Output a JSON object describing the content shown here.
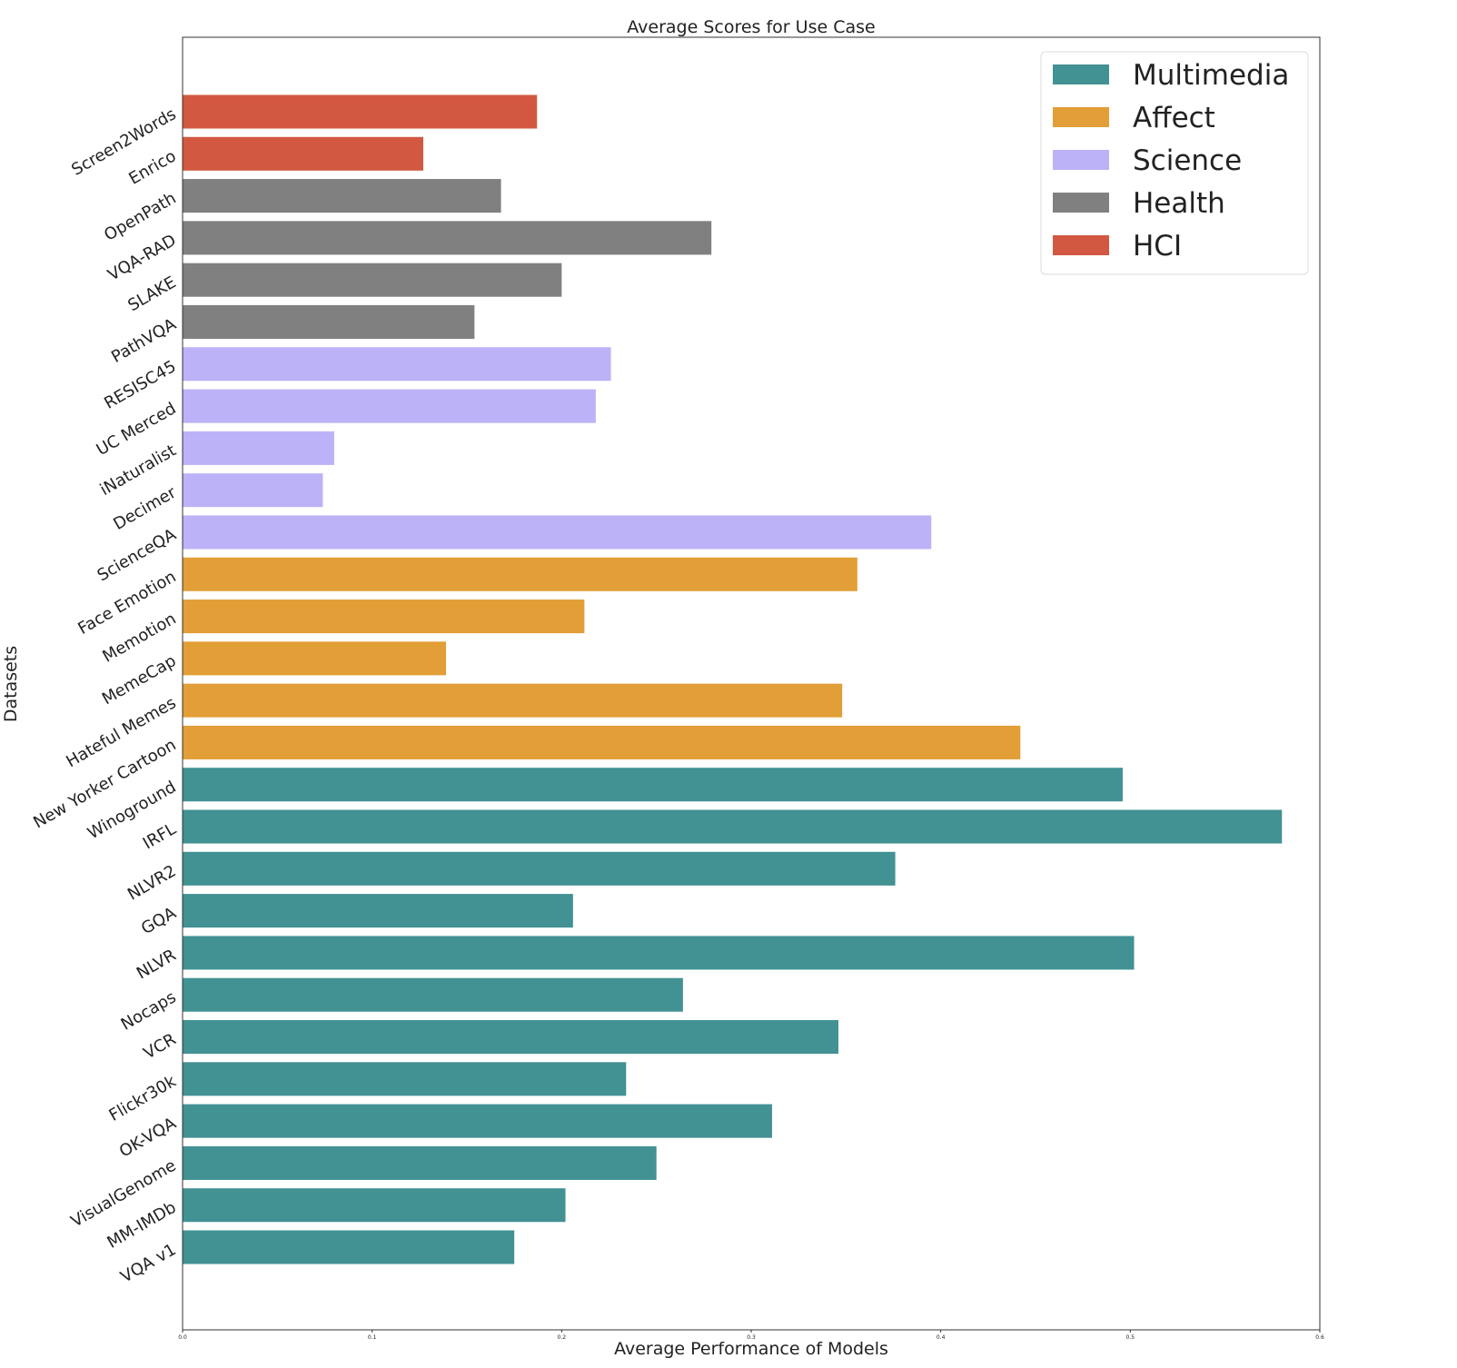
{
  "chart_data": {
    "type": "bar",
    "orientation": "horizontal",
    "title": "Average Scores for Use Case",
    "xlabel": "Average Performance of Models",
    "ylabel": "Datasets",
    "xlim": [
      0,
      0.6
    ],
    "xticks": [
      "0.0",
      "0.1",
      "0.2",
      "0.3",
      "0.4",
      "0.5",
      "0.6"
    ],
    "grid": false,
    "legend_position": "top-right",
    "groups": [
      {
        "name": "Multimedia",
        "color": "#429193"
      },
      {
        "name": "Affect",
        "color": "#e29e37"
      },
      {
        "name": "Science",
        "color": "#bcb2f7"
      },
      {
        "name": "Health",
        "color": "#808080"
      },
      {
        "name": "HCI",
        "color": "#d35841"
      }
    ],
    "bars": [
      {
        "label": "VQA v1",
        "value": 0.175,
        "group": "Multimedia"
      },
      {
        "label": "MM-IMDb",
        "value": 0.202,
        "group": "Multimedia"
      },
      {
        "label": "VisualGenome",
        "value": 0.25,
        "group": "Multimedia"
      },
      {
        "label": "OK-VQA",
        "value": 0.311,
        "group": "Multimedia"
      },
      {
        "label": "Flickr30k",
        "value": 0.234,
        "group": "Multimedia"
      },
      {
        "label": "VCR",
        "value": 0.346,
        "group": "Multimedia"
      },
      {
        "label": "Nocaps",
        "value": 0.264,
        "group": "Multimedia"
      },
      {
        "label": "NLVR",
        "value": 0.502,
        "group": "Multimedia"
      },
      {
        "label": "GQA",
        "value": 0.206,
        "group": "Multimedia"
      },
      {
        "label": "NLVR2",
        "value": 0.376,
        "group": "Multimedia"
      },
      {
        "label": "IRFL",
        "value": 0.58,
        "group": "Multimedia"
      },
      {
        "label": "Winoground",
        "value": 0.496,
        "group": "Multimedia"
      },
      {
        "label": "New Yorker Cartoon",
        "value": 0.442,
        "group": "Affect"
      },
      {
        "label": "Hateful Memes",
        "value": 0.348,
        "group": "Affect"
      },
      {
        "label": "MemeCap",
        "value": 0.139,
        "group": "Affect"
      },
      {
        "label": "Memotion",
        "value": 0.212,
        "group": "Affect"
      },
      {
        "label": "Face Emotion",
        "value": 0.356,
        "group": "Affect"
      },
      {
        "label": "ScienceQA",
        "value": 0.395,
        "group": "Science"
      },
      {
        "label": "Decimer",
        "value": 0.074,
        "group": "Science"
      },
      {
        "label": "iNaturalist",
        "value": 0.08,
        "group": "Science"
      },
      {
        "label": "UC Merced",
        "value": 0.218,
        "group": "Science"
      },
      {
        "label": "RESISC45",
        "value": 0.226,
        "group": "Science"
      },
      {
        "label": "PathVQA",
        "value": 0.154,
        "group": "Health"
      },
      {
        "label": "SLAKE",
        "value": 0.2,
        "group": "Health"
      },
      {
        "label": "VQA-RAD",
        "value": 0.279,
        "group": "Health"
      },
      {
        "label": "OpenPath",
        "value": 0.168,
        "group": "Health"
      },
      {
        "label": "Enrico",
        "value": 0.127,
        "group": "HCI"
      },
      {
        "label": "Screen2Words",
        "value": 0.187,
        "group": "HCI"
      }
    ]
  }
}
